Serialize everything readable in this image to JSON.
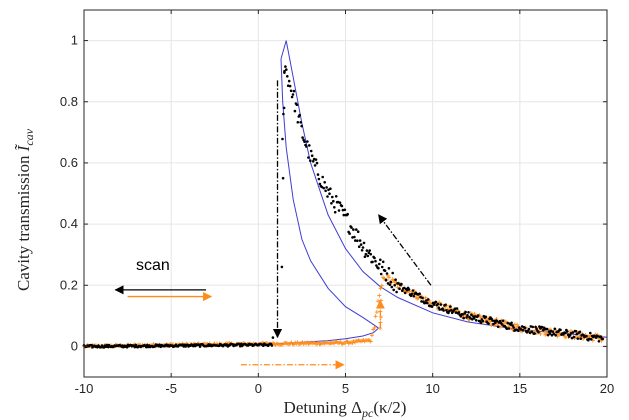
{
  "chart_data": {
    "type": "scatter",
    "xlabel": "Detuning Δ",
    "xlabel_sub": "pc",
    "xlabel_tail": "(κ/2)",
    "ylabel": "Cavity transmission",
    "ylabel_symbol": "Ĩ",
    "ylabel_sub": "cav",
    "xlim": [
      -10,
      20
    ],
    "ylim": [
      -0.1,
      1.1
    ],
    "xticks": [
      -10,
      -5,
      0,
      5,
      10,
      15,
      20
    ],
    "yticks": [
      0,
      0.2,
      0.4,
      0.6,
      0.8,
      1
    ],
    "xtick_labels": [
      "-10",
      "-5",
      "0",
      "5",
      "10",
      "15",
      "20"
    ],
    "ytick_labels": [
      "0",
      "0.2",
      "0.4",
      "0.6",
      "0.8",
      "1"
    ],
    "grid": true,
    "colors": {
      "black_data": "#000000",
      "orange_data": "#ff8c1a",
      "theory": "#3d3dd6",
      "axis": "#262626",
      "grid": "#e6e6e6"
    },
    "theory_curve": {
      "upper_branch": {
        "x": [
          1.3,
          1.6,
          2.0,
          2.5,
          3.0,
          4.0,
          5.0,
          6.0,
          7.0,
          8.0,
          10.0,
          12.0,
          15.0,
          20.0
        ],
        "y": [
          0.94,
          1.0,
          0.88,
          0.73,
          0.6,
          0.43,
          0.32,
          0.245,
          0.195,
          0.16,
          0.11,
          0.08,
          0.055,
          0.03
        ]
      },
      "lower_branch": {
        "x": [
          -10,
          -5,
          0,
          1.0,
          2.0,
          3.0,
          4.0,
          5.0,
          6.0,
          6.6,
          6.9
        ],
        "y": [
          0.002,
          0.004,
          0.008,
          0.009,
          0.012,
          0.015,
          0.019,
          0.025,
          0.034,
          0.045,
          0.06
        ]
      },
      "unstable_branch": {
        "x": [
          6.9,
          6.0,
          5.0,
          4.0,
          3.0,
          2.5,
          2.0,
          1.6,
          1.4,
          1.3
        ],
        "y": [
          0.06,
          0.095,
          0.13,
          0.19,
          0.28,
          0.35,
          0.48,
          0.65,
          0.8,
          0.94
        ]
      }
    },
    "black_series": {
      "name": "backward scan",
      "envelope": {
        "x": [
          -10,
          0,
          0.8,
          1.2,
          1.5,
          2.0,
          2.5,
          3.0,
          4.0,
          5.0,
          6.0,
          7.0,
          8.0,
          10.0,
          12.0,
          15.0,
          20.0
        ],
        "y": [
          0.0,
          0.005,
          0.005,
          0.25,
          0.92,
          0.82,
          0.7,
          0.62,
          0.5,
          0.42,
          0.33,
          0.26,
          0.2,
          0.14,
          0.1,
          0.06,
          0.025
        ]
      }
    },
    "orange_series": {
      "name": "forward scan",
      "envelope": {
        "x": [
          -10,
          -5,
          0,
          5,
          6.5,
          6.9,
          7.2,
          8.0,
          10.0,
          12.0,
          15.0,
          20.0
        ],
        "y": [
          0.0,
          0.005,
          0.008,
          0.012,
          0.02,
          0.15,
          0.23,
          0.2,
          0.14,
          0.1,
          0.06,
          0.025
        ]
      }
    },
    "annotations": {
      "scan_label": "scan",
      "scan_arrow_black": {
        "from": [
          -3,
          0.185
        ],
        "to": [
          -8.2,
          0.185
        ]
      },
      "scan_arrow_orange": {
        "from": [
          -7.5,
          0.163
        ],
        "to": [
          -2.7,
          0.163
        ]
      },
      "down_jump_arrow": {
        "from": [
          1.1,
          0.87
        ],
        "to": [
          1.1,
          0.03
        ]
      },
      "up_jump_arrow": {
        "from": [
          7.0,
          0.06
        ],
        "to": [
          7.0,
          0.15
        ]
      },
      "backward_arrow": {
        "from": [
          9.9,
          0.2
        ],
        "to": [
          6.9,
          0.43
        ]
      },
      "forward_arrow": {
        "from": [
          -1.0,
          -0.06
        ],
        "to": [
          4.9,
          -0.06
        ]
      }
    }
  }
}
